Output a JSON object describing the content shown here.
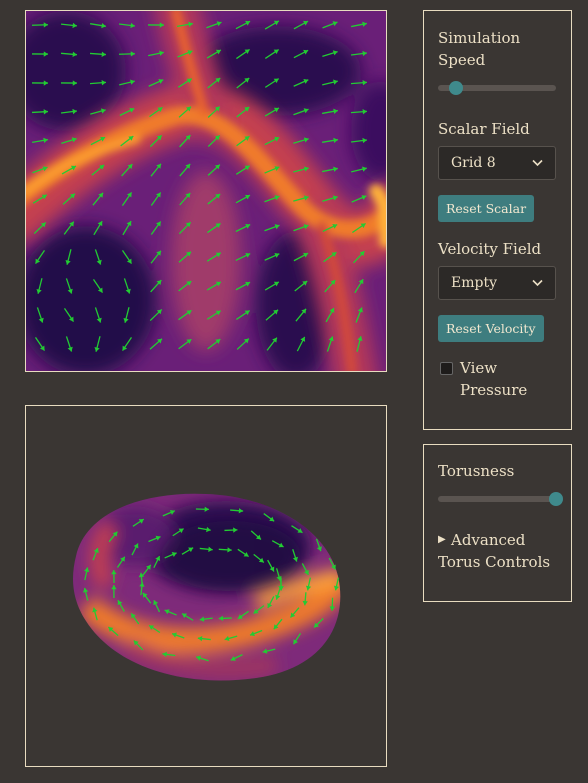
{
  "controls": {
    "simulation_speed_label": "Simulation Speed",
    "simulation_speed_value": 0.15,
    "scalar_field_label": "Scalar Field",
    "scalar_field_value": "Grid 8",
    "reset_scalar_label": "Reset Scalar",
    "velocity_field_label": "Velocity Field",
    "velocity_field_value": "Empty",
    "reset_velocity_label": "Reset Velocity",
    "view_pressure_label": "View Pressure",
    "view_pressure_checked": false
  },
  "torus": {
    "torusness_label": "Torusness",
    "torusness_value": 1.0,
    "advanced_label": "Advanced Torus Controls"
  },
  "colors": {
    "background": "#3a3633",
    "accent": "#3e7d7f",
    "arrow": "#22cc33",
    "text": "#ece0c6"
  },
  "icons": {
    "dropdown": "chevron-down-icon",
    "disclosure": "triangle-right-icon"
  }
}
